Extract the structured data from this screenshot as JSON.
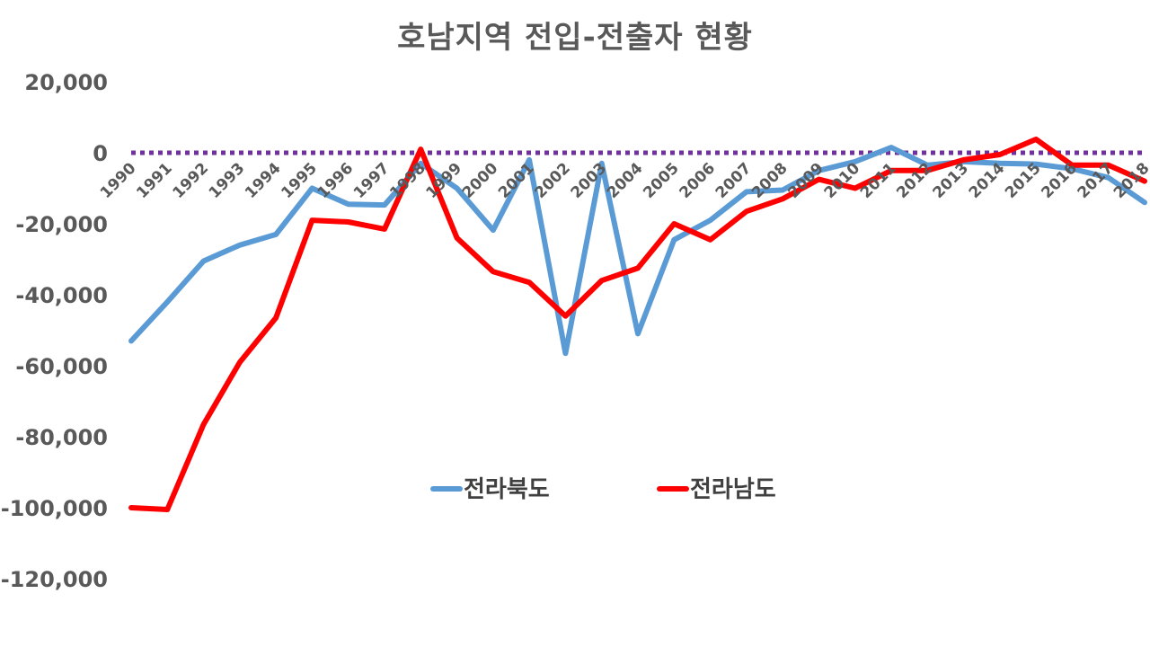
{
  "chart_data": {
    "type": "line",
    "title": "호남지역 전입-전출자 현황",
    "xlabel": "",
    "ylabel": "",
    "categories": [
      "1990",
      "1991",
      "1992",
      "1993",
      "1994",
      "1995",
      "1996",
      "1997",
      "1998",
      "1999",
      "2000",
      "2001",
      "2002",
      "2003",
      "2004",
      "2005",
      "2006",
      "2007",
      "2008",
      "2009",
      "2010",
      "2011",
      "2012",
      "2013",
      "2014",
      "2015",
      "2016",
      "2017",
      "2018"
    ],
    "ylim": [
      -120000,
      20000
    ],
    "yticks": [
      20000,
      0,
      -20000,
      -40000,
      -60000,
      -80000,
      -100000,
      -120000
    ],
    "ytick_labels": [
      "20,000",
      "0",
      "-20,000",
      "-40,000",
      "-60,000",
      "-80,000",
      "-100,000",
      "-120,000"
    ],
    "reference_line": {
      "y": 0,
      "style": "dotted",
      "color": "#7030A0"
    },
    "grid": false,
    "legend_position": "center",
    "series": [
      {
        "name": "전라북도",
        "color": "#5B9BD5",
        "values": [
          -53000,
          -42000,
          -30500,
          -26000,
          -23000,
          -10000,
          -14500,
          -14700,
          -3000,
          -10000,
          -21800,
          -2000,
          -56500,
          -3000,
          -51000,
          -24500,
          -19000,
          -11000,
          -10500,
          -5000,
          -2500,
          1500,
          -3500,
          -2500,
          -3000,
          -3200,
          -4500,
          -7000,
          -14000
        ]
      },
      {
        "name": "전라남도",
        "color": "#FF0000",
        "values": [
          -100000,
          -100500,
          -76500,
          -59000,
          -46500,
          -19000,
          -19500,
          -21500,
          1000,
          -24000,
          -33500,
          -36500,
          -46000,
          -36000,
          -32500,
          -20000,
          -24500,
          -16500,
          -13000,
          -7500,
          -10000,
          -5000,
          -5000,
          -2000,
          -500,
          3800,
          -3500,
          -3500,
          -8000
        ]
      }
    ]
  }
}
